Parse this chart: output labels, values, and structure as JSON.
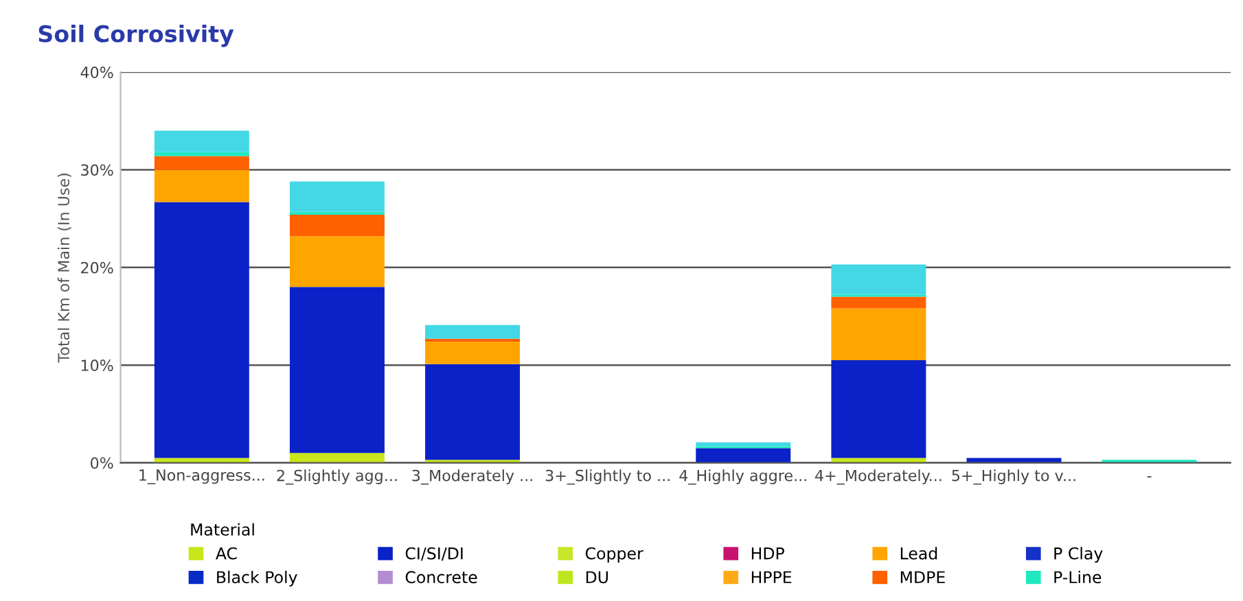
{
  "chart_data": {
    "type": "bar",
    "title": "Soil Corrosivity",
    "ylabel": "Total Km of Main (In Use)",
    "legend_title": "Material",
    "categories": [
      "1_Non-aggress...",
      "2_Slightly agg...",
      "3_Moderately ...",
      "3+_Slightly to ...",
      "4_Highly aggre...",
      "4+_Moderately...",
      "5+_Highly to v...",
      "-"
    ],
    "stacked": true,
    "grid": "y",
    "legend": "bottom",
    "ylim": [
      0,
      40
    ],
    "yticks": [
      {
        "value": 0,
        "label": "0%"
      },
      {
        "value": 10,
        "label": "10%"
      },
      {
        "value": 20,
        "label": "20%"
      },
      {
        "value": 30,
        "label": "30%"
      },
      {
        "value": 40,
        "label": "40%"
      }
    ],
    "series": [
      {
        "name": "AC",
        "color": "#c8e619",
        "values": [
          0.5,
          1.0,
          0.3,
          0,
          0,
          0.5,
          0,
          0
        ]
      },
      {
        "name": "Black Poly",
        "color": "#0a2ac8",
        "values": [
          0,
          0,
          0,
          0,
          0,
          0,
          0,
          0
        ]
      },
      {
        "name": "CI/SI/DI",
        "color": "#0a22c8",
        "values": [
          26.2,
          17.0,
          9.8,
          0,
          1.5,
          10.0,
          0.5,
          0
        ]
      },
      {
        "name": "Concrete",
        "color": "#b48cd2",
        "values": [
          0,
          0,
          0,
          0,
          0,
          0,
          0,
          0
        ]
      },
      {
        "name": "Copper",
        "color": "#c8e628",
        "values": [
          0,
          0,
          0,
          0,
          0,
          0,
          0,
          0
        ]
      },
      {
        "name": "DU",
        "color": "#bee61e",
        "values": [
          0,
          0,
          0,
          0,
          0,
          0,
          0,
          0
        ]
      },
      {
        "name": "HDP",
        "color": "#c8146e",
        "values": [
          0,
          0,
          0,
          0,
          0,
          0,
          0,
          0
        ]
      },
      {
        "name": "HPPE",
        "color": "#ffaa14",
        "values": [
          0,
          0,
          0,
          0,
          0,
          0,
          0,
          0
        ]
      },
      {
        "name": "Lead",
        "color": "#ffa500",
        "values": [
          3.3,
          5.2,
          2.3,
          0,
          0,
          5.3,
          0,
          0
        ]
      },
      {
        "name": "MDPE",
        "color": "#ff6000",
        "values": [
          1.4,
          2.2,
          0.3,
          0,
          0,
          1.2,
          0,
          0
        ]
      },
      {
        "name": "P Clay",
        "color": "#1432c8",
        "values": [
          0,
          0,
          0,
          0,
          0,
          0,
          0,
          0
        ]
      },
      {
        "name": "P-Line",
        "color": "#20e8c0",
        "values": [
          0.4,
          0.3,
          0,
          0,
          0.2,
          0.2,
          0,
          0.3
        ]
      },
      {
        "color": "#44d8e6",
        "values": [
          2.2,
          3.1,
          1.4,
          0,
          0.4,
          3.1,
          0,
          0
        ]
      }
    ]
  }
}
